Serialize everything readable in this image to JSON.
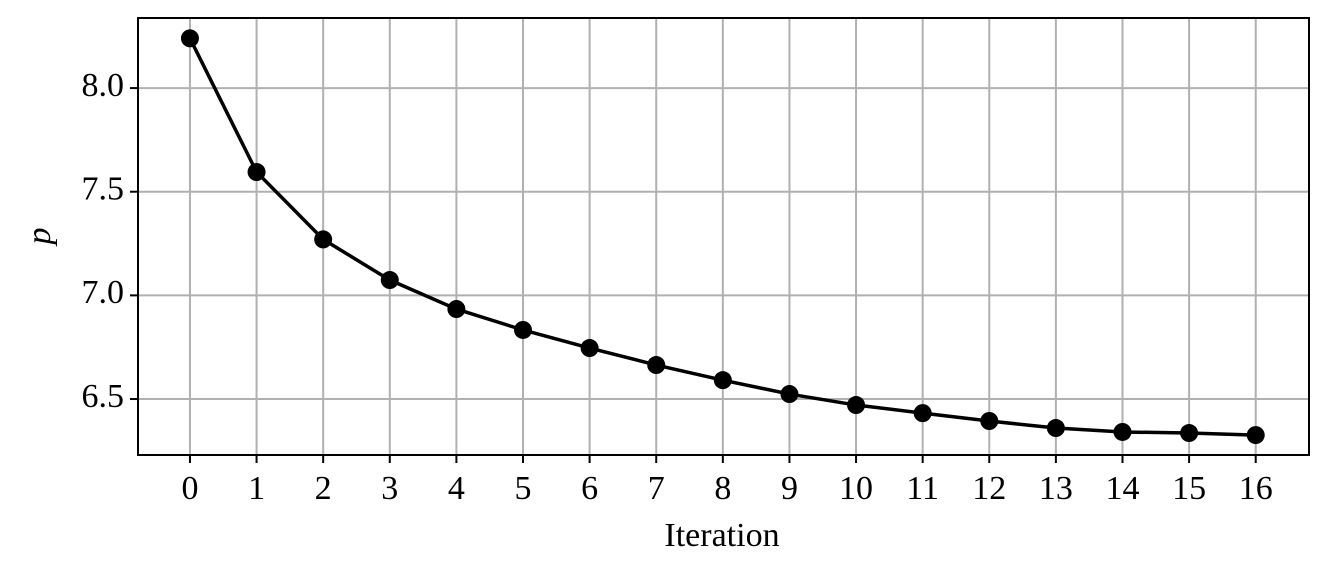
{
  "chart_data": {
    "type": "line",
    "x_label": "Iteration",
    "y_label": "p",
    "x": [
      0,
      1,
      2,
      3,
      4,
      5,
      6,
      7,
      8,
      9,
      10,
      11,
      12,
      13,
      14,
      15,
      16
    ],
    "values": [
      8.24,
      7.595,
      7.27,
      7.074,
      6.934,
      6.833,
      6.746,
      6.664,
      6.591,
      6.524,
      6.471,
      6.432,
      6.394,
      6.36,
      6.341,
      6.336,
      6.326
    ],
    "color": "#000000",
    "xlim": [
      -0.78,
      16.8
    ],
    "ylim": [
      6.23,
      8.338
    ],
    "xticks": [
      0,
      1,
      2,
      3,
      4,
      5,
      6,
      7,
      8,
      9,
      10,
      11,
      12,
      13,
      14,
      15,
      16
    ],
    "yticks": [
      {
        "value": 6.5,
        "label": "6.5"
      },
      {
        "value": 7,
        "label": "7.0"
      },
      {
        "value": 7.5,
        "label": "7.5"
      },
      {
        "value": 8,
        "label": "8.0"
      }
    ],
    "grid": true
  }
}
